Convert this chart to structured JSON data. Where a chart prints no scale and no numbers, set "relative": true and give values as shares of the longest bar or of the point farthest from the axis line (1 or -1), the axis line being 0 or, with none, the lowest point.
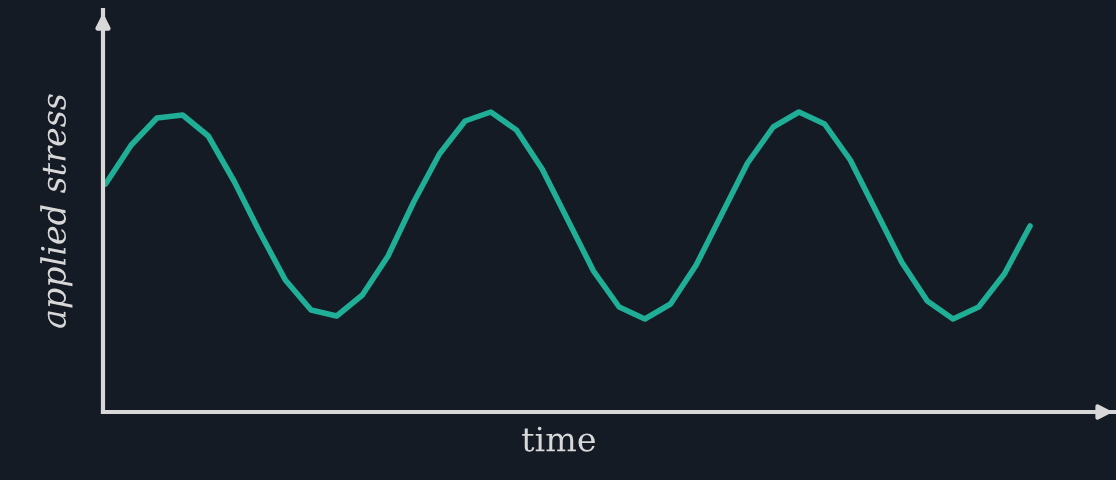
{
  "chart_data": {
    "type": "line",
    "relative": true,
    "xlabel": "time",
    "ylabel": "applied stress",
    "categories": [
      null,
      null,
      null,
      null,
      null,
      null,
      null,
      null,
      null,
      null,
      null,
      null,
      null,
      null,
      null,
      null,
      null,
      null,
      null,
      null,
      null,
      null,
      null,
      null,
      null,
      null,
      null,
      null,
      null,
      null,
      null,
      null,
      null,
      null,
      null,
      null,
      null
    ],
    "series": [
      {
        "color": "#1fae96",
        "values": [
          0.76,
          0.89,
          0.98,
          0.99,
          0.92,
          0.77,
          0.6,
          0.44,
          0.34,
          0.32,
          0.39,
          0.52,
          0.7,
          0.86,
          0.97,
          1.0,
          0.94,
          0.81,
          0.64,
          0.47,
          0.35,
          0.31,
          0.36,
          0.49,
          0.66,
          0.83,
          0.95,
          1.0,
          0.96,
          0.84,
          0.67,
          0.5,
          0.37,
          0.31,
          0.35,
          0.46,
          0.62
        ]
      }
    ],
    "grid": false,
    "legend": false,
    "tick_labels": false
  }
}
